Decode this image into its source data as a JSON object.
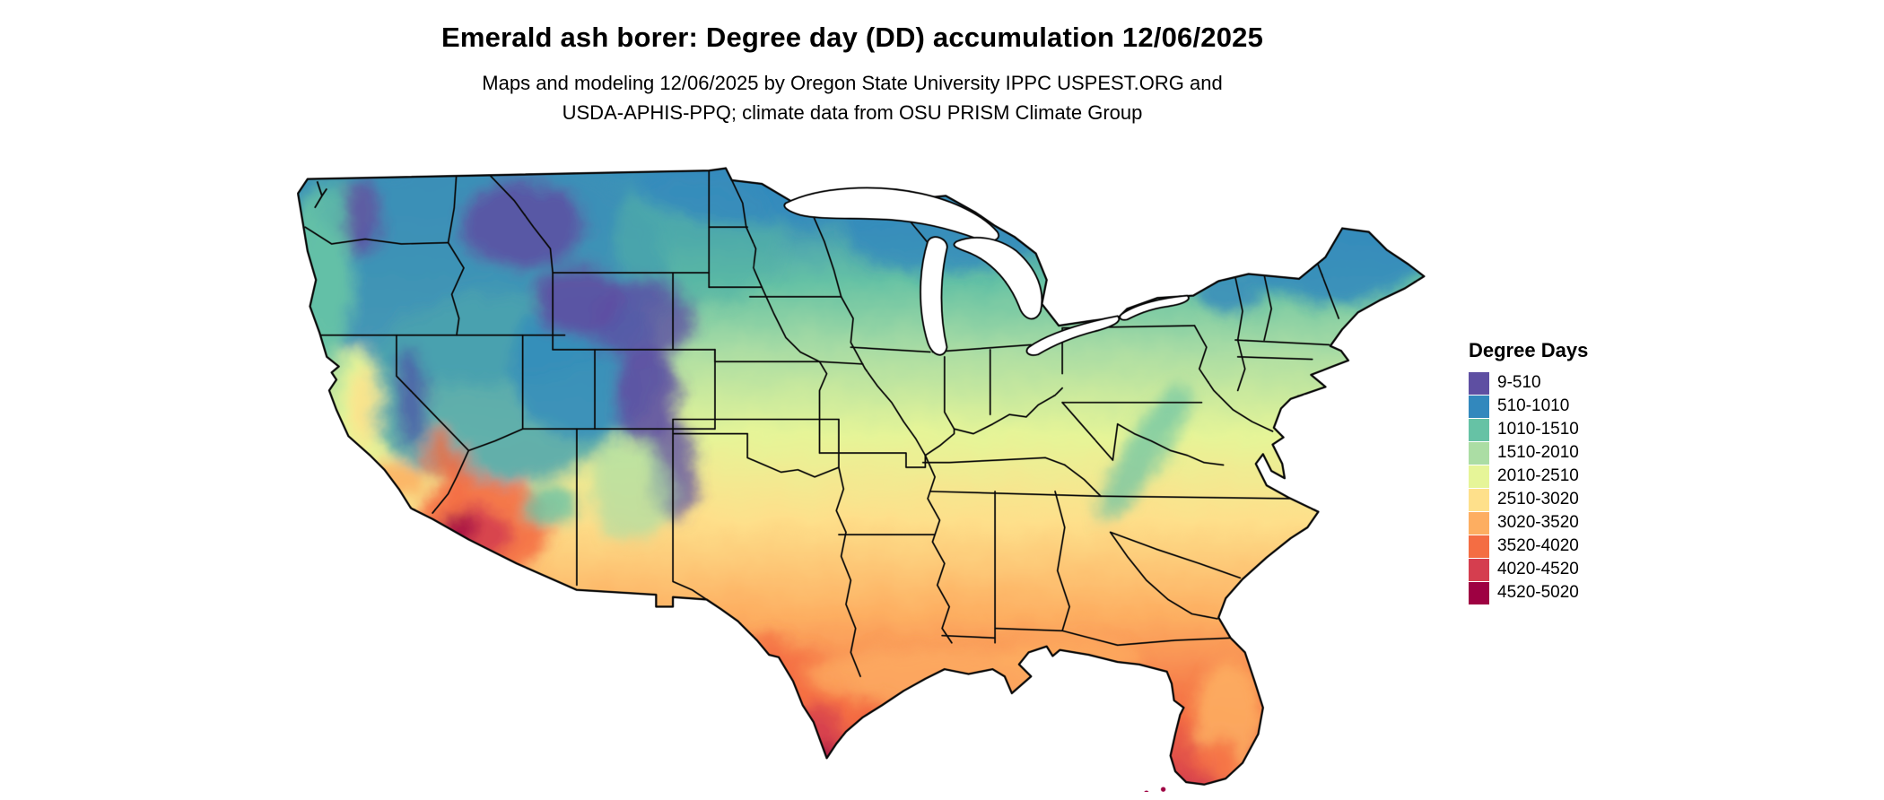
{
  "header": {
    "title": "Emerald ash borer: Degree day (DD) accumulation 12/06/2025",
    "subtitle_line1": "Maps and modeling 12/06/2025 by Oregon State University IPPC USPEST.ORG and",
    "subtitle_line2": "USDA-APHIS-PPQ; climate data from OSU PRISM Climate Group"
  },
  "map": {
    "name": "us-degree-day-map",
    "description": "Continental United States raster map of accumulated degree days for emerald ash borer; cool colors (purple/blue) in the mountain west and northern tier, warm colors (orange/red) across the south, Arizona, south Texas and Florida"
  },
  "legend": {
    "title": "Degree Days",
    "classes": [
      {
        "label": "9-510",
        "color": "#5e4fa2"
      },
      {
        "label": "510-1010",
        "color": "#3288bd"
      },
      {
        "label": "1010-1510",
        "color": "#66c2a5"
      },
      {
        "label": "1510-2010",
        "color": "#abdda4"
      },
      {
        "label": "2010-2510",
        "color": "#e6f598"
      },
      {
        "label": "2510-3020",
        "color": "#fee08b"
      },
      {
        "label": "3020-3520",
        "color": "#fdae61"
      },
      {
        "label": "3520-4020",
        "color": "#f46d43"
      },
      {
        "label": "4020-4520",
        "color": "#d53e4f"
      },
      {
        "label": "4520-5020",
        "color": "#9e0142"
      }
    ]
  }
}
